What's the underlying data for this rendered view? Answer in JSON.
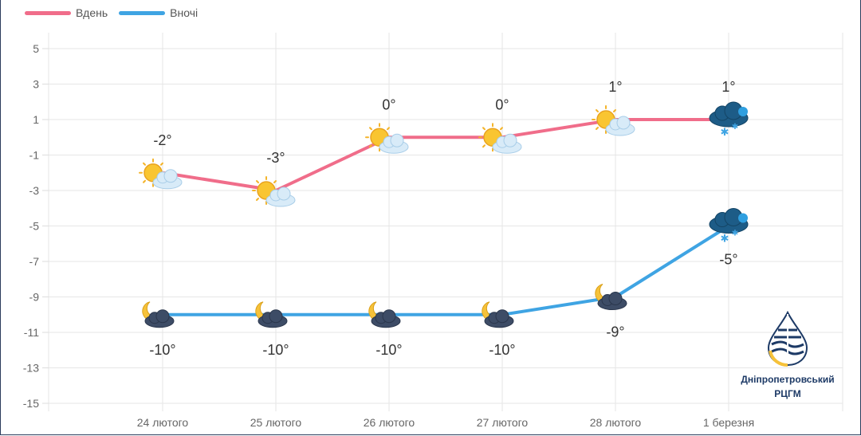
{
  "legend": {
    "day_label": "Вдень",
    "night_label": "Вночі"
  },
  "logo": {
    "line1": "Дніпропетровський",
    "line2": "РЦГМ"
  },
  "chart_data": {
    "type": "line",
    "categories": [
      "24 лютого",
      "25 лютого",
      "26 лютого",
      "27 лютого",
      "28 лютого",
      "1 березня"
    ],
    "series": [
      {
        "name": "Вдень",
        "color": "#f06d8a",
        "values": [
          -2,
          -3,
          0,
          0,
          1,
          1
        ],
        "labels": [
          "-2°",
          "-3°",
          "0°",
          "0°",
          "1°",
          "1°"
        ],
        "icons": [
          "sun-cloud-icon",
          "sun-cloud-icon",
          "sun-cloud-icon",
          "sun-cloud-icon",
          "sun-cloud-icon",
          "snow-cloud-icon"
        ]
      },
      {
        "name": "Вночі",
        "color": "#3fa4e3",
        "values": [
          -10,
          -10,
          -10,
          -10,
          -9,
          -5
        ],
        "labels": [
          "-10°",
          "-10°",
          "-10°",
          "-10°",
          "-9°",
          "-5°"
        ],
        "icons": [
          "moon-cloud-icon",
          "moon-cloud-icon",
          "moon-cloud-icon",
          "moon-cloud-icon",
          "moon-cloud-icon",
          "snow-cloud-icon"
        ]
      }
    ],
    "yticks": [
      "5",
      "3",
      "1",
      "-1",
      "-3",
      "-5",
      "-7",
      "-9",
      "-11",
      "-13",
      "-15"
    ],
    "ylim": [
      -15,
      5
    ],
    "grid": true,
    "legend_position": "top-left"
  }
}
